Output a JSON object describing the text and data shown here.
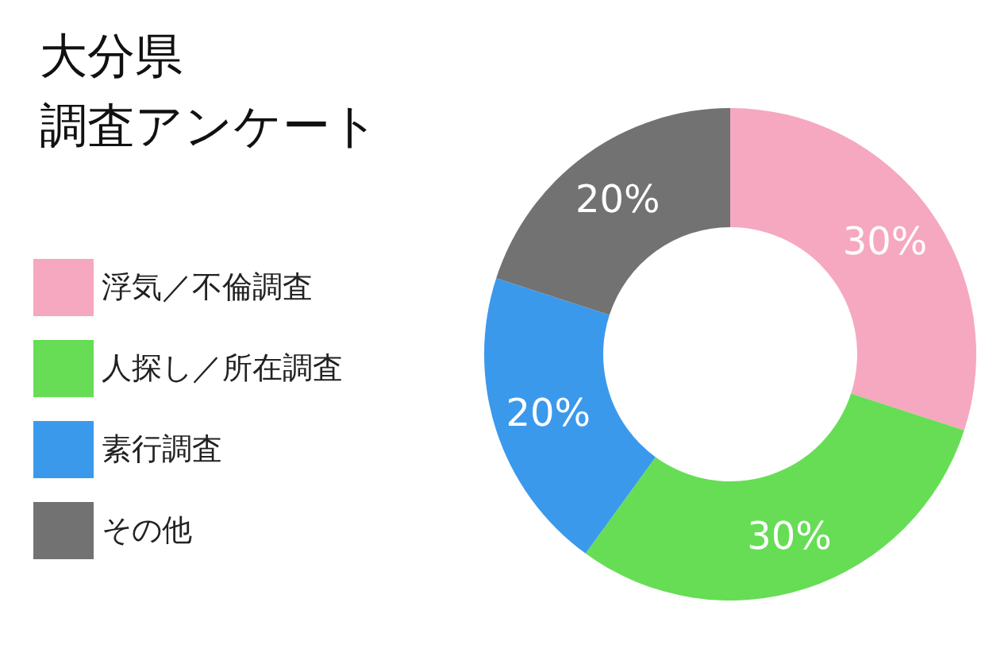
{
  "chart_data": {
    "type": "donut",
    "title": "大分県",
    "subtitle": "調査アンケート",
    "categories": [
      "浮気／不倫調査",
      "人探し／所在調査",
      "素行調査",
      "その他"
    ],
    "values": [
      30,
      30,
      20,
      20
    ],
    "value_labels": [
      "30%",
      "30%",
      "20%",
      "20%"
    ],
    "colors": [
      "#f5a8bf",
      "#66dd55",
      "#3b99ec",
      "#727272"
    ],
    "legend": "left"
  }
}
